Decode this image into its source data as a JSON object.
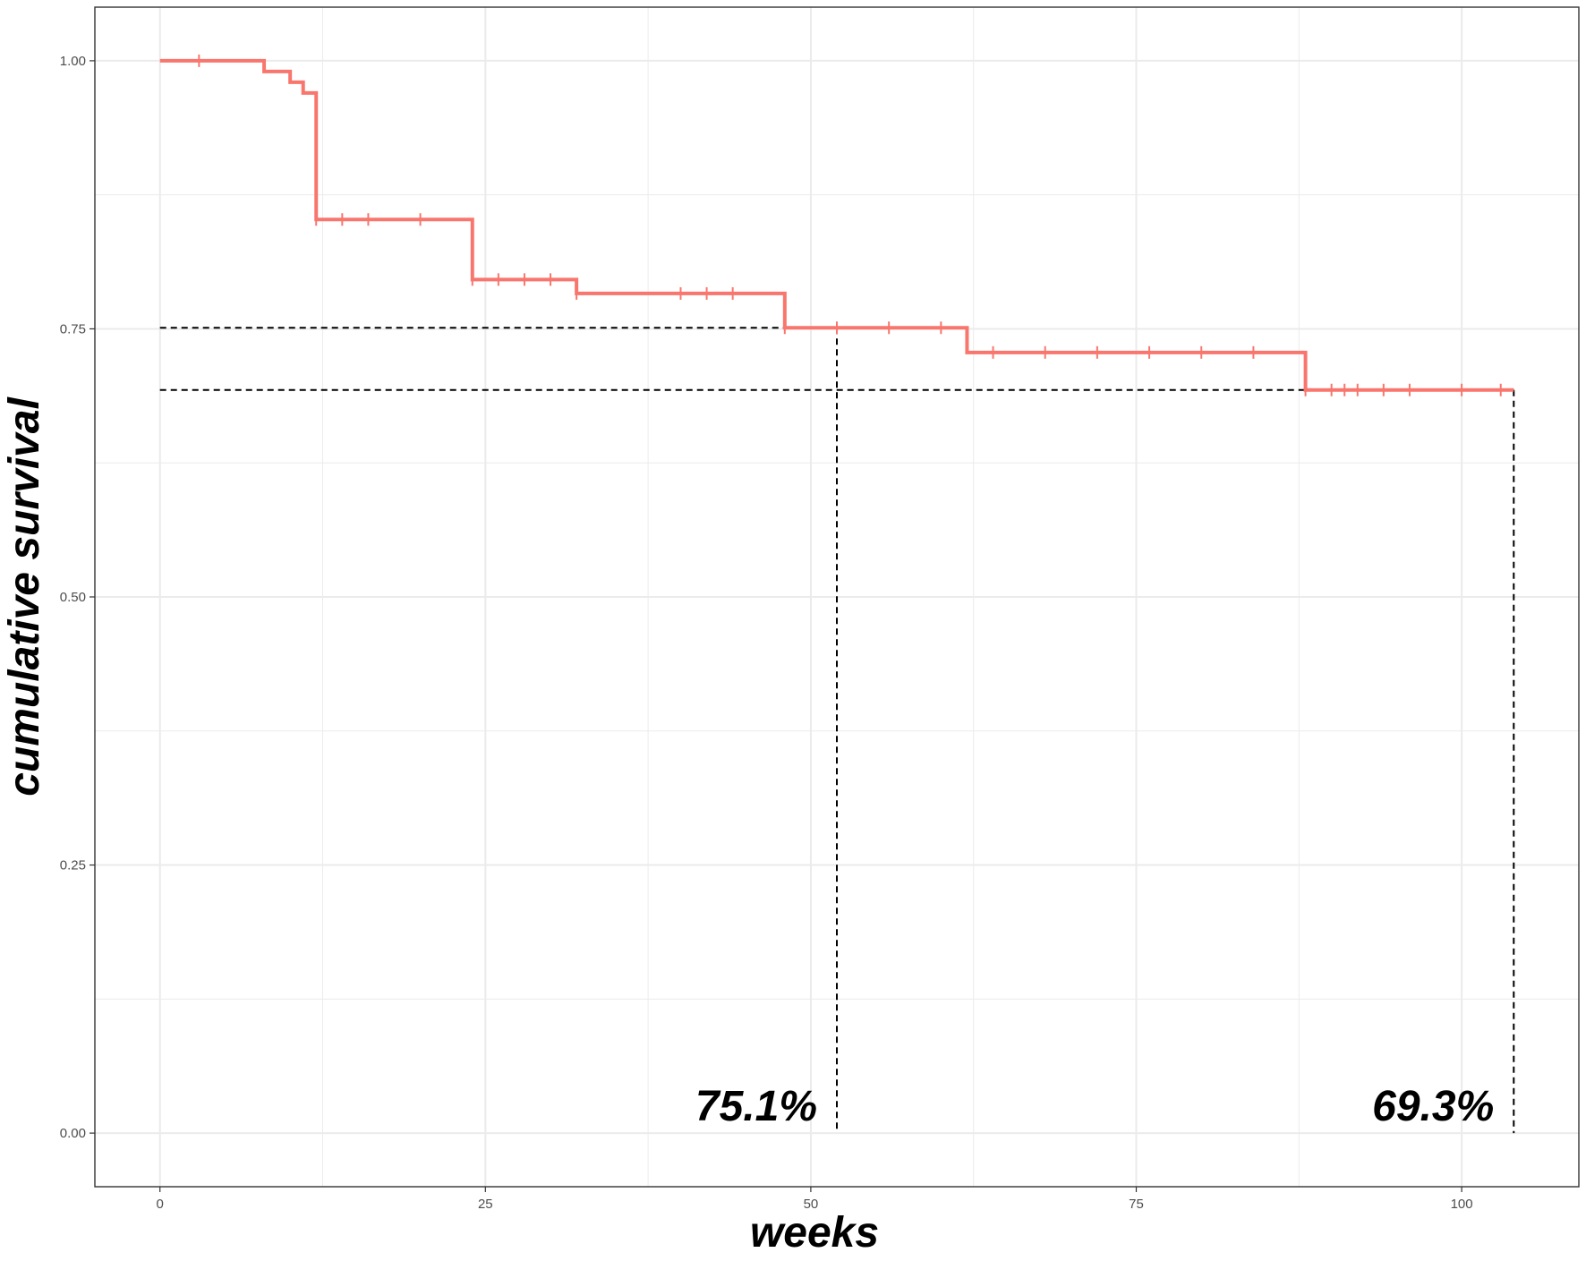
{
  "chart_data": {
    "type": "line",
    "subtype": "kaplan-meier step curve with censor marks",
    "xlabel": "weeks",
    "ylabel": "cumulative survival",
    "xlim": [
      -5,
      109
    ],
    "ylim": [
      -0.05,
      1.05
    ],
    "x_ticks": [
      0,
      25,
      50,
      75,
      100
    ],
    "x_tick_labels": [
      "0",
      "25",
      "50",
      "75",
      "100"
    ],
    "y_ticks": [
      0,
      0.25,
      0.5,
      0.75,
      1.0
    ],
    "y_tick_labels": [
      "0.00",
      "0.25",
      "0.50",
      "0.75",
      "1.00"
    ],
    "grid": true,
    "colors": {
      "curve": "#F8766D",
      "grid": "#ebebeb",
      "border": "#333333",
      "reference": "#000000"
    },
    "series": [
      {
        "steps": [
          {
            "x": 0,
            "y": 1.0
          },
          {
            "x": 8,
            "y": 0.99
          },
          {
            "x": 10,
            "y": 0.98
          },
          {
            "x": 11,
            "y": 0.97
          },
          {
            "x": 12,
            "y": 0.852
          },
          {
            "x": 24,
            "y": 0.796
          },
          {
            "x": 32,
            "y": 0.783
          },
          {
            "x": 48,
            "y": 0.751
          },
          {
            "x": 62,
            "y": 0.728
          },
          {
            "x": 88,
            "y": 0.693
          }
        ],
        "end_x": 104,
        "censored": [
          {
            "x": 3,
            "y": 1.0
          },
          {
            "x": 12,
            "y": 0.852
          },
          {
            "x": 14,
            "y": 0.852
          },
          {
            "x": 16,
            "y": 0.852
          },
          {
            "x": 20,
            "y": 0.852
          },
          {
            "x": 24,
            "y": 0.796
          },
          {
            "x": 26,
            "y": 0.796
          },
          {
            "x": 28,
            "y": 0.796
          },
          {
            "x": 30,
            "y": 0.796
          },
          {
            "x": 32,
            "y": 0.783
          },
          {
            "x": 40,
            "y": 0.783
          },
          {
            "x": 42,
            "y": 0.783
          },
          {
            "x": 44,
            "y": 0.783
          },
          {
            "x": 48,
            "y": 0.751
          },
          {
            "x": 52,
            "y": 0.751
          },
          {
            "x": 56,
            "y": 0.751
          },
          {
            "x": 60,
            "y": 0.751
          },
          {
            "x": 64,
            "y": 0.728
          },
          {
            "x": 68,
            "y": 0.728
          },
          {
            "x": 72,
            "y": 0.728
          },
          {
            "x": 76,
            "y": 0.728
          },
          {
            "x": 80,
            "y": 0.728
          },
          {
            "x": 84,
            "y": 0.728
          },
          {
            "x": 88,
            "y": 0.693
          },
          {
            "x": 90,
            "y": 0.693
          },
          {
            "x": 91,
            "y": 0.693
          },
          {
            "x": 92,
            "y": 0.693
          },
          {
            "x": 94,
            "y": 0.693
          },
          {
            "x": 96,
            "y": 0.693
          },
          {
            "x": 100,
            "y": 0.693
          },
          {
            "x": 103,
            "y": 0.693
          }
        ]
      }
    ],
    "reference_lines": [
      {
        "x": 52,
        "y": 0.751,
        "label": "75.1%"
      },
      {
        "x": 104,
        "y": 0.693,
        "label": "69.3%"
      }
    ]
  }
}
